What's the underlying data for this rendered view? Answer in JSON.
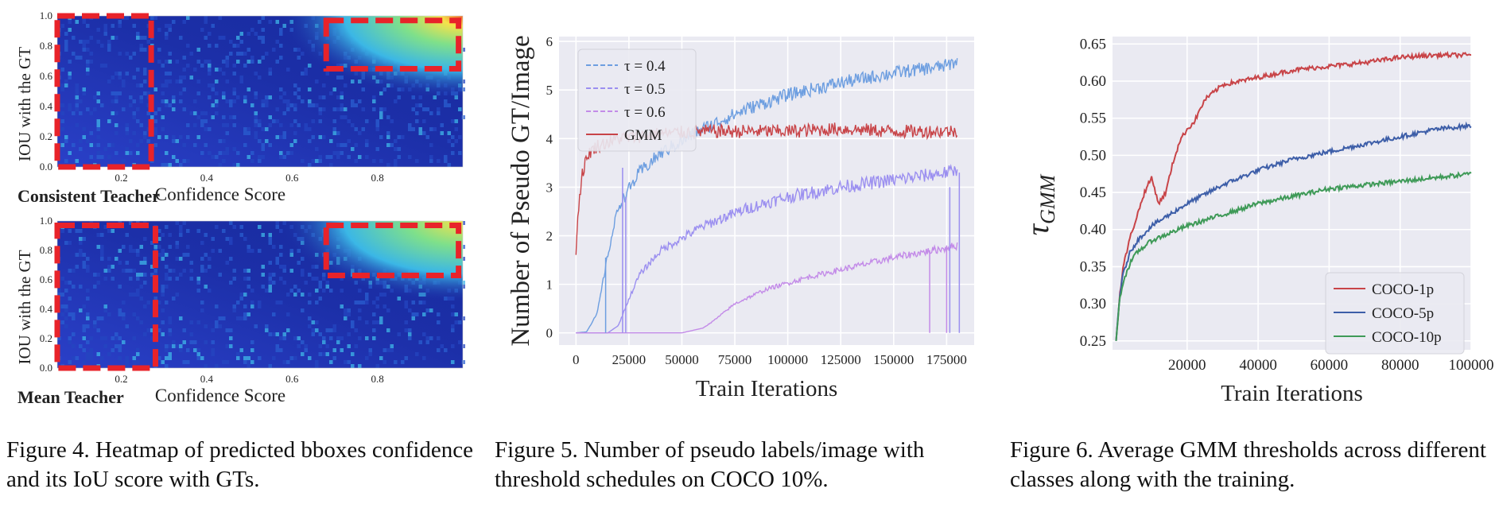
{
  "figures": {
    "fig4": {
      "caption": "Figure 4. Heatmap of predicted bboxes confidence and its IoU score with GTs.",
      "panels": [
        {
          "title": "Consistent Teacher",
          "xlabel": "Confidence Score",
          "ylabel": "IOU with the GT"
        },
        {
          "title": "Mean Teacher",
          "xlabel": "Confidence Score",
          "ylabel": "IOU with the GT"
        }
      ],
      "colors": {
        "bg": "#1a2aa8",
        "hot": "#f0f040",
        "box": "#e8232a"
      }
    },
    "fig5": {
      "caption": "Figure 5.  Number of pseudo labels/image with threshold schedules on COCO 10%."
    },
    "fig6": {
      "caption": "Figure 6.  Average GMM thresholds across different classes along with the training."
    }
  },
  "chart_data": [
    {
      "type": "heatmap",
      "title": "Consistent Teacher",
      "xlabel": "Confidence Score",
      "ylabel": "IOU with the GT",
      "xticks": [
        "0.2",
        "0.4",
        "0.6",
        "0.8"
      ],
      "yticks": [
        "0.0",
        "0.2",
        "0.4",
        "0.6",
        "0.8",
        "1.0"
      ],
      "xlim": [
        0.05,
        1.0
      ],
      "ylim": [
        0.0,
        1.0
      ],
      "highlight_regions": [
        {
          "x": [
            0.05,
            0.27
          ],
          "y": [
            0.0,
            1.0
          ]
        },
        {
          "x": [
            0.68,
            0.99
          ],
          "y": [
            0.65,
            0.97
          ]
        }
      ]
    },
    {
      "type": "heatmap",
      "title": "Mean Teacher",
      "xlabel": "Confidence Score",
      "ylabel": "IOU with the GT",
      "xticks": [
        "0.2",
        "0.4",
        "0.6",
        "0.8"
      ],
      "yticks": [
        "0.0",
        "0.2",
        "0.4",
        "0.6",
        "0.8",
        "1.0"
      ],
      "xlim": [
        0.05,
        1.0
      ],
      "ylim": [
        0.0,
        1.0
      ],
      "highlight_regions": [
        {
          "x": [
            0.05,
            0.28
          ],
          "y": [
            0.0,
            0.97
          ]
        },
        {
          "x": [
            0.68,
            0.99
          ],
          "y": [
            0.63,
            0.97
          ]
        }
      ]
    },
    {
      "type": "line",
      "xlabel": "Train Iterations",
      "ylabel": "Number of Pseudo GT/Image",
      "xlim": [
        -8000,
        188000
      ],
      "ylim": [
        -0.25,
        6.1
      ],
      "xticks": [
        "0",
        "25000",
        "50000",
        "75000",
        "100000",
        "125000",
        "150000",
        "175000"
      ],
      "yticks": [
        "0",
        "1",
        "2",
        "3",
        "4",
        "5",
        "6"
      ],
      "grid": true,
      "legend": "top-left",
      "series": [
        {
          "name": "τ = 0.4",
          "color": "#6d9ee0",
          "dashed": true,
          "x": [
            0,
            5000,
            10000,
            15000,
            20000,
            30000,
            40000,
            60000,
            80000,
            100000,
            125000,
            150000,
            175000,
            180000
          ],
          "values": [
            0,
            0.02,
            0.4,
            1.6,
            2.6,
            3.3,
            3.7,
            4.2,
            4.6,
            4.9,
            5.15,
            5.35,
            5.5,
            5.6
          ]
        },
        {
          "name": "τ = 0.5",
          "color": "#9b8ff0",
          "dashed": true,
          "x": [
            0,
            15000,
            20000,
            25000,
            30000,
            40000,
            60000,
            80000,
            100000,
            125000,
            150000,
            175000,
            180000
          ],
          "values": [
            0,
            0,
            0.15,
            0.7,
            1.2,
            1.7,
            2.2,
            2.55,
            2.8,
            3.0,
            3.15,
            3.3,
            3.35
          ]
        },
        {
          "name": "τ = 0.6",
          "color": "#c38be8",
          "dashed": true,
          "x": [
            0,
            50000,
            55000,
            60000,
            65000,
            75000,
            90000,
            110000,
            130000,
            150000,
            175000,
            180000
          ],
          "values": [
            0,
            0,
            0.05,
            0.1,
            0.25,
            0.6,
            0.9,
            1.15,
            1.35,
            1.55,
            1.75,
            1.8
          ]
        },
        {
          "name": "GMM",
          "color": "#c84448",
          "dashed": false,
          "x": [
            0,
            1000,
            3000,
            6000,
            10000,
            20000,
            40000,
            60000,
            100000,
            125000,
            150000,
            175000,
            180000
          ],
          "values": [
            1.65,
            2.5,
            3.3,
            3.7,
            3.85,
            4.0,
            4.1,
            4.15,
            4.15,
            4.2,
            4.15,
            4.15,
            4.15
          ]
        }
      ]
    },
    {
      "type": "line",
      "xlabel": "Train Iterations",
      "ylabel": "τ_GMM",
      "xlim": [
        -1000,
        100000
      ],
      "ylim": [
        0.238,
        0.66
      ],
      "xticks": [
        "20000",
        "40000",
        "60000",
        "80000",
        "100000"
      ],
      "yticks": [
        "0.25",
        "0.30",
        "0.35",
        "0.40",
        "0.45",
        "0.50",
        "0.55",
        "0.60",
        "0.65"
      ],
      "grid": true,
      "legend": "bottom-right",
      "series": [
        {
          "name": "COCO-1p",
          "color": "#c84448",
          "x": [
            0,
            1000,
            2000,
            4000,
            6000,
            8000,
            10000,
            12000,
            14000,
            16000,
            18000,
            20000,
            22000,
            25000,
            30000,
            40000,
            50000,
            60000,
            70000,
            80000,
            90000,
            100000
          ],
          "values": [
            0.25,
            0.31,
            0.35,
            0.39,
            0.42,
            0.45,
            0.47,
            0.435,
            0.45,
            0.49,
            0.52,
            0.535,
            0.545,
            0.575,
            0.595,
            0.605,
            0.615,
            0.62,
            0.625,
            0.632,
            0.635,
            0.635
          ]
        },
        {
          "name": "COCO-5p",
          "color": "#3d5ea8",
          "x": [
            0,
            1000,
            2000,
            4000,
            6000,
            10000,
            15000,
            20000,
            30000,
            40000,
            50000,
            60000,
            70000,
            80000,
            90000,
            100000
          ],
          "values": [
            0.25,
            0.31,
            0.34,
            0.37,
            0.385,
            0.405,
            0.42,
            0.435,
            0.46,
            0.48,
            0.495,
            0.505,
            0.515,
            0.525,
            0.535,
            0.54
          ]
        },
        {
          "name": "COCO-10p",
          "color": "#3f9a58",
          "x": [
            0,
            1000,
            2000,
            4000,
            6000,
            10000,
            15000,
            20000,
            30000,
            40000,
            50000,
            60000,
            70000,
            80000,
            90000,
            100000
          ],
          "values": [
            0.25,
            0.305,
            0.33,
            0.355,
            0.37,
            0.385,
            0.395,
            0.405,
            0.42,
            0.435,
            0.445,
            0.455,
            0.46,
            0.465,
            0.47,
            0.475
          ]
        }
      ]
    }
  ]
}
